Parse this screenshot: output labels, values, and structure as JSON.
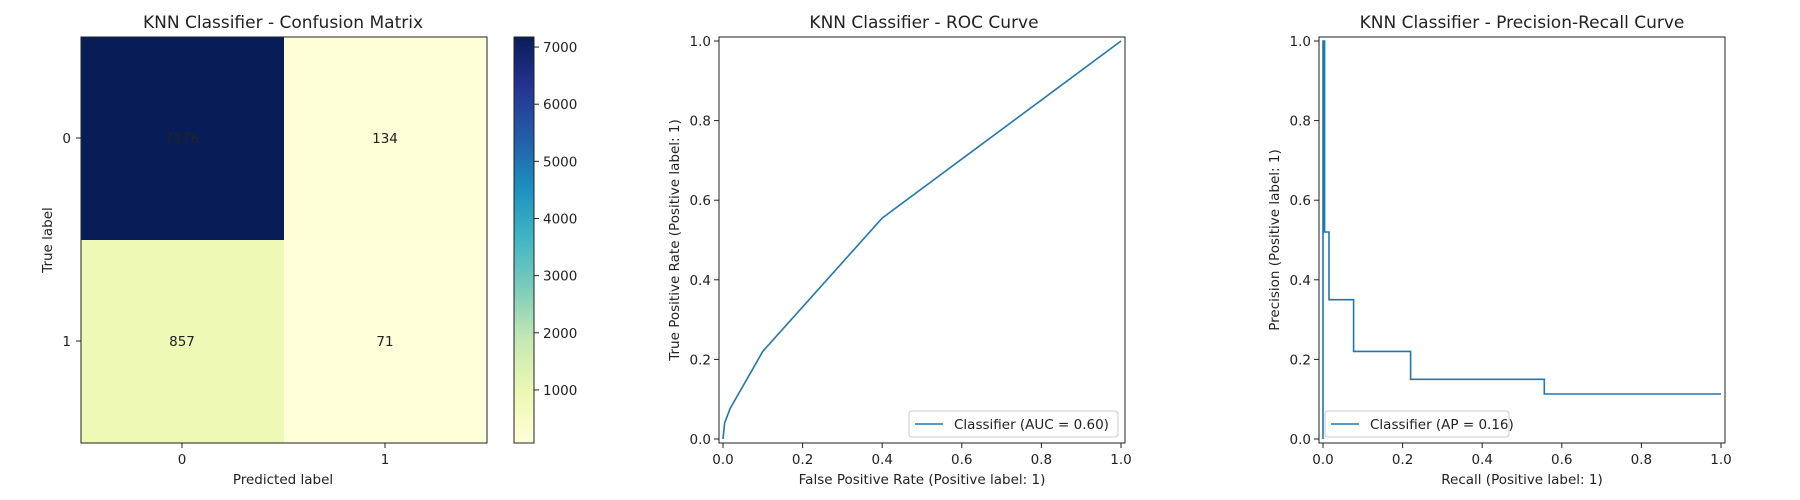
{
  "chart_data": [
    {
      "type": "heatmap",
      "title": "KNN Classifier - Confusion Matrix",
      "xlabel": "Predicted label",
      "ylabel": "True label",
      "x_categories": [
        "0",
        "1"
      ],
      "y_categories": [
        "0",
        "1"
      ],
      "values": [
        [
          7176,
          134
        ],
        [
          857,
          71
        ]
      ],
      "colormap": "YlGnBu",
      "colorbar": {
        "range": [
          71,
          7176
        ],
        "ticks": [
          1000,
          2000,
          3000,
          4000,
          5000,
          6000,
          7000
        ]
      },
      "colors": {
        "low": "#ffffd9",
        "high": "#081d58"
      }
    },
    {
      "type": "line",
      "title": "KNN Classifier - ROC Curve",
      "xlabel": "False Positive Rate (Positive label: 1)",
      "ylabel": "True Positive Rate (Positive label: 1)",
      "xlim": [
        0,
        1
      ],
      "ylim": [
        0,
        1
      ],
      "xticks": [
        "0.0",
        "0.2",
        "0.4",
        "0.6",
        "0.8",
        "1.0"
      ],
      "yticks": [
        "0.0",
        "0.2",
        "0.4",
        "0.6",
        "0.8",
        "1.0"
      ],
      "grid": false,
      "legend_position": "lower-right",
      "series": [
        {
          "name": "Classifier (AUC = 0.60)",
          "color": "#1f77b4",
          "x": [
            0.0,
            0.004,
            0.018,
            0.1,
            0.4,
            1.0
          ],
          "y": [
            0.0,
            0.04,
            0.077,
            0.22,
            0.555,
            1.0
          ]
        }
      ]
    },
    {
      "type": "line",
      "title": "KNN Classifier - Precision-Recall Curve",
      "xlabel": "Recall (Positive label: 1)",
      "ylabel": "Precision (Positive label: 1)",
      "xlim": [
        0,
        1
      ],
      "ylim": [
        0,
        1
      ],
      "xticks": [
        "0.0",
        "0.2",
        "0.4",
        "0.6",
        "0.8",
        "1.0"
      ],
      "yticks": [
        "0.0",
        "0.2",
        "0.4",
        "0.6",
        "0.8",
        "1.0"
      ],
      "grid": false,
      "legend_position": "lower-left",
      "step": true,
      "series": [
        {
          "name": "Classifier (AP = 0.16)",
          "color": "#1f77b4",
          "x": [
            1.0,
            0.556,
            0.556,
            0.22,
            0.22,
            0.077,
            0.077,
            0.015,
            0.015,
            0.004,
            0.004,
            0.0,
            0.0
          ],
          "y": [
            0.113,
            0.113,
            0.15,
            0.15,
            0.22,
            0.22,
            0.35,
            0.35,
            0.52,
            0.52,
            1.0,
            1.0,
            0.0
          ]
        }
      ]
    }
  ]
}
